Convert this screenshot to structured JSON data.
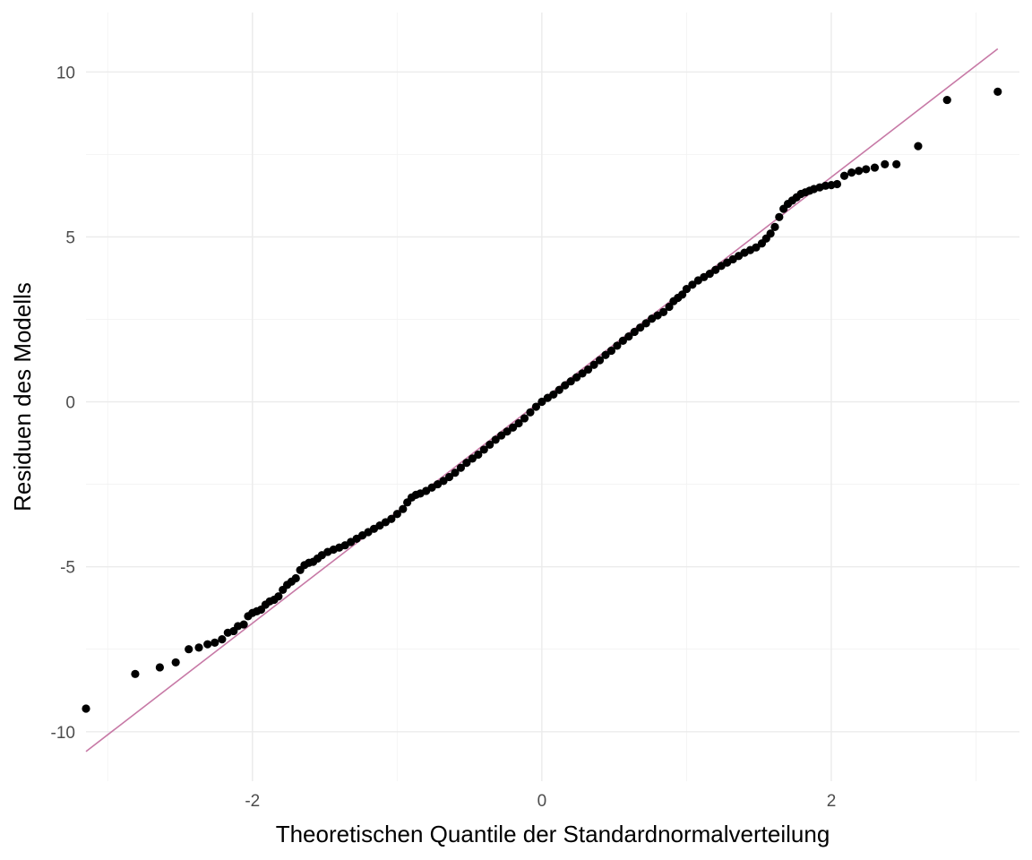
{
  "chart_data": {
    "type": "scatter",
    "title": "",
    "xlabel": "Theoretischen Quantile der Standardnormalverteilung",
    "ylabel": "Residuen des Modells",
    "xlim": [
      -3.15,
      3.3
    ],
    "ylim": [
      -11.5,
      11.8
    ],
    "x_ticks": [
      -2,
      0,
      2
    ],
    "y_ticks": [
      -10,
      -5,
      0,
      5,
      10
    ],
    "x_tick_labels": [
      "-2",
      "0",
      "2"
    ],
    "y_tick_labels": [
      "-10",
      "-5",
      "0",
      "5",
      "10"
    ],
    "grid": true,
    "legend": "none",
    "colors": {
      "points": "#000000",
      "reference_line": "#c779a6"
    },
    "reference_line": {
      "x": [
        -3.15,
        3.15
      ],
      "y": [
        -10.6,
        10.7
      ]
    },
    "series": [
      {
        "values": [
          [
            -3.15,
            -9.3
          ],
          [
            -2.81,
            -8.25
          ],
          [
            -2.64,
            -8.05
          ],
          [
            -2.53,
            -7.9
          ],
          [
            -2.44,
            -7.5
          ],
          [
            -2.37,
            -7.45
          ],
          [
            -2.31,
            -7.35
          ],
          [
            -2.26,
            -7.3
          ],
          [
            -2.21,
            -7.2
          ],
          [
            -2.17,
            -7.0
          ],
          [
            -2.13,
            -6.95
          ],
          [
            -2.1,
            -6.8
          ],
          [
            -2.06,
            -6.75
          ],
          [
            -2.03,
            -6.5
          ],
          [
            -2.0,
            -6.4
          ],
          [
            -1.97,
            -6.35
          ],
          [
            -1.94,
            -6.3
          ],
          [
            -1.91,
            -6.15
          ],
          [
            -1.88,
            -6.05
          ],
          [
            -1.85,
            -6.0
          ],
          [
            -1.82,
            -5.9
          ],
          [
            -1.79,
            -5.7
          ],
          [
            -1.76,
            -5.55
          ],
          [
            -1.73,
            -5.45
          ],
          [
            -1.7,
            -5.35
          ],
          [
            -1.67,
            -5.1
          ],
          [
            -1.64,
            -4.95
          ],
          [
            -1.61,
            -4.88
          ],
          [
            -1.58,
            -4.85
          ],
          [
            -1.55,
            -4.75
          ],
          [
            -1.52,
            -4.65
          ],
          [
            -1.48,
            -4.55
          ],
          [
            -1.44,
            -4.48
          ],
          [
            -1.4,
            -4.42
          ],
          [
            -1.36,
            -4.35
          ],
          [
            -1.32,
            -4.25
          ],
          [
            -1.28,
            -4.15
          ],
          [
            -1.24,
            -4.05
          ],
          [
            -1.2,
            -3.95
          ],
          [
            -1.16,
            -3.85
          ],
          [
            -1.12,
            -3.75
          ],
          [
            -1.08,
            -3.65
          ],
          [
            -1.04,
            -3.55
          ],
          [
            -1.0,
            -3.4
          ],
          [
            -0.96,
            -3.25
          ],
          [
            -0.93,
            -3.05
          ],
          [
            -0.9,
            -2.9
          ],
          [
            -0.87,
            -2.82
          ],
          [
            -0.84,
            -2.78
          ],
          [
            -0.8,
            -2.7
          ],
          [
            -0.76,
            -2.6
          ],
          [
            -0.72,
            -2.5
          ],
          [
            -0.68,
            -2.4
          ],
          [
            -0.64,
            -2.28
          ],
          [
            -0.6,
            -2.15
          ],
          [
            -0.56,
            -2.0
          ],
          [
            -0.52,
            -1.85
          ],
          [
            -0.48,
            -1.72
          ],
          [
            -0.44,
            -1.6
          ],
          [
            -0.4,
            -1.45
          ],
          [
            -0.36,
            -1.3
          ],
          [
            -0.32,
            -1.15
          ],
          [
            -0.28,
            -1.02
          ],
          [
            -0.24,
            -0.9
          ],
          [
            -0.2,
            -0.78
          ],
          [
            -0.16,
            -0.65
          ],
          [
            -0.12,
            -0.5
          ],
          [
            -0.08,
            -0.32
          ],
          [
            -0.04,
            -0.15
          ],
          [
            0.0,
            0.0
          ],
          [
            0.04,
            0.12
          ],
          [
            0.08,
            0.22
          ],
          [
            0.12,
            0.36
          ],
          [
            0.16,
            0.5
          ],
          [
            0.2,
            0.62
          ],
          [
            0.24,
            0.74
          ],
          [
            0.28,
            0.86
          ],
          [
            0.32,
            0.98
          ],
          [
            0.36,
            1.12
          ],
          [
            0.4,
            1.26
          ],
          [
            0.44,
            1.42
          ],
          [
            0.48,
            1.55
          ],
          [
            0.52,
            1.7
          ],
          [
            0.56,
            1.85
          ],
          [
            0.6,
            1.98
          ],
          [
            0.64,
            2.12
          ],
          [
            0.68,
            2.25
          ],
          [
            0.72,
            2.38
          ],
          [
            0.76,
            2.52
          ],
          [
            0.8,
            2.62
          ],
          [
            0.84,
            2.72
          ],
          [
            0.88,
            2.88
          ],
          [
            0.91,
            3.05
          ],
          [
            0.94,
            3.15
          ],
          [
            0.97,
            3.25
          ],
          [
            1.0,
            3.42
          ],
          [
            1.04,
            3.55
          ],
          [
            1.08,
            3.68
          ],
          [
            1.12,
            3.78
          ],
          [
            1.16,
            3.88
          ],
          [
            1.2,
            4.0
          ],
          [
            1.24,
            4.12
          ],
          [
            1.28,
            4.22
          ],
          [
            1.32,
            4.32
          ],
          [
            1.36,
            4.42
          ],
          [
            1.4,
            4.52
          ],
          [
            1.44,
            4.6
          ],
          [
            1.48,
            4.68
          ],
          [
            1.52,
            4.8
          ],
          [
            1.55,
            4.95
          ],
          [
            1.58,
            5.1
          ],
          [
            1.61,
            5.3
          ],
          [
            1.64,
            5.6
          ],
          [
            1.67,
            5.85
          ],
          [
            1.7,
            6.0
          ],
          [
            1.73,
            6.1
          ],
          [
            1.76,
            6.2
          ],
          [
            1.79,
            6.3
          ],
          [
            1.82,
            6.35
          ],
          [
            1.85,
            6.4
          ],
          [
            1.88,
            6.45
          ],
          [
            1.92,
            6.5
          ],
          [
            1.96,
            6.55
          ],
          [
            2.0,
            6.57
          ],
          [
            2.04,
            6.6
          ],
          [
            2.09,
            6.85
          ],
          [
            2.14,
            6.95
          ],
          [
            2.19,
            7.0
          ],
          [
            2.24,
            7.05
          ],
          [
            2.3,
            7.1
          ],
          [
            2.37,
            7.2
          ],
          [
            2.45,
            7.2
          ],
          [
            2.6,
            7.75
          ],
          [
            2.8,
            9.15
          ],
          [
            3.15,
            9.4
          ]
        ]
      }
    ]
  }
}
